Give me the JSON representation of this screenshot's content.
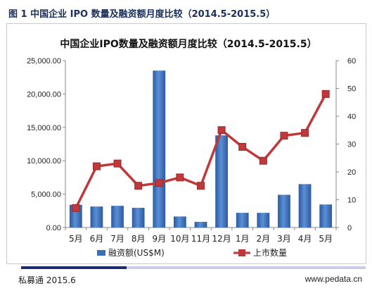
{
  "figure": {
    "caption": "图 1  中国企业 IPO 数量及融资额月度比较（2014.5-2015.5）",
    "source": "私募通 2015.6",
    "website": "www.pedata.cn"
  },
  "chart_data": {
    "type": "bar+line",
    "title": "中国企业IPO数量及融资额月度比较（2014.5-2015.5）",
    "categories": [
      "5月",
      "6月",
      "7月",
      "8月",
      "9月",
      "10月",
      "11月",
      "12月",
      "1月",
      "2月",
      "3月",
      "4月",
      "5月"
    ],
    "series": [
      {
        "name": "融资额(US$M)",
        "type": "bar",
        "axis": "left",
        "color": "#3b6fb6",
        "values": [
          3400,
          3150,
          3250,
          2950,
          23500,
          1650,
          850,
          13800,
          2200,
          2200,
          4900,
          6500,
          3450
        ]
      },
      {
        "name": "上市数量",
        "type": "line",
        "axis": "right",
        "color": "#c0383a",
        "values": [
          7,
          22,
          23,
          15,
          16,
          18,
          15,
          35,
          29,
          24,
          33,
          34,
          48
        ]
      }
    ],
    "y_left": {
      "min": 0,
      "max": 25000,
      "ticks": [
        "0.00",
        "5,000.00",
        "10,000.00",
        "15,000.00",
        "20,000.00",
        "25,000.00"
      ]
    },
    "y_right": {
      "min": 0,
      "max": 60,
      "ticks": [
        "0",
        "10",
        "20",
        "30",
        "40",
        "50",
        "60"
      ]
    },
    "grid": false,
    "legend_position": "bottom"
  }
}
